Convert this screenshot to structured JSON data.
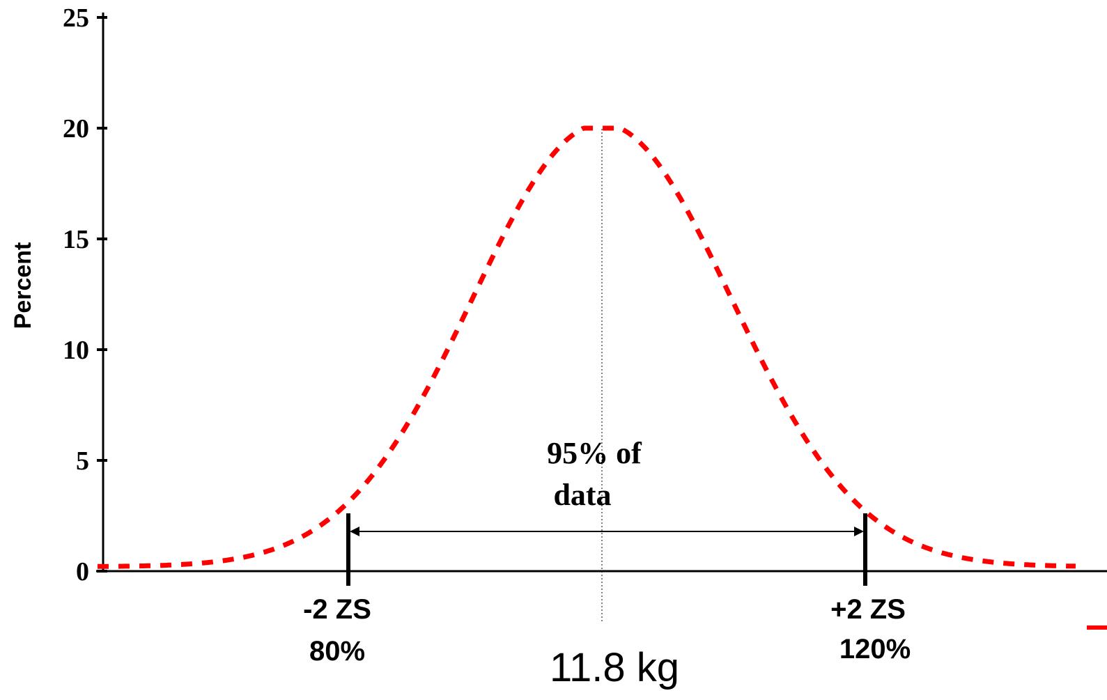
{
  "chart_data": {
    "type": "line",
    "ylabel": "Percent",
    "ylim": [
      0,
      25
    ],
    "yticks": [
      "0",
      "5",
      "10",
      "15",
      "20",
      "25"
    ],
    "grid": false,
    "center": {
      "label": "11.8 kg"
    },
    "markers": [
      {
        "line1": "-2 ZS",
        "line2": "80%"
      },
      {
        "line1": "+2 ZS",
        "line2": "120%"
      }
    ],
    "annotation": {
      "line1": "95% of",
      "line2": "data"
    },
    "series": [
      {
        "style": "dashed",
        "color": "#ff0000",
        "shape": "normal distribution",
        "peak": 20,
        "minus_2_sd_value": 5.1,
        "plus_2_sd_value": 4.8
      }
    ]
  }
}
